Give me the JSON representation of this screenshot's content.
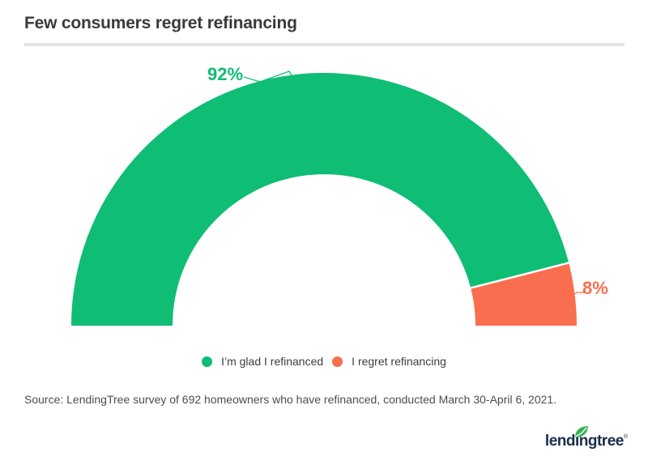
{
  "page": {
    "title": "Few consumers regret refinancing"
  },
  "colors": {
    "green": "#0fbd74",
    "orange": "#f96e4f",
    "title_text": "#3a3a3c",
    "legend_text": "#3a3d40",
    "source_text": "#4b4d51",
    "divider": "#e4e4e4",
    "logo_navy": "#1b2b4a",
    "leaf_green": "#35b44e",
    "separator_white": "#ffffff"
  },
  "chart_data": {
    "type": "pie",
    "variant": "semi-donut",
    "title": "Few consumers regret refinancing",
    "categories": [
      "I’m glad I refinanced",
      "I regret refinancing"
    ],
    "values": [
      92,
      8
    ],
    "unit": "%",
    "value_labels": [
      "92%",
      "8%"
    ],
    "slice_colors": [
      "#0fbd74",
      "#f96e4f"
    ],
    "legend_position": "bottom",
    "start_angle_deg": 180,
    "end_angle_deg": 0
  },
  "legend": {
    "items": [
      {
        "label": "I’m glad I refinanced",
        "color": "green"
      },
      {
        "label": "I regret refinancing",
        "color": "orange"
      }
    ]
  },
  "source": {
    "text": "Source: LendingTree survey of 692 homeowners who have refinanced, conducted March 30-April 6, 2021."
  },
  "logo": {
    "text": "lendingtree",
    "registered": "®"
  }
}
